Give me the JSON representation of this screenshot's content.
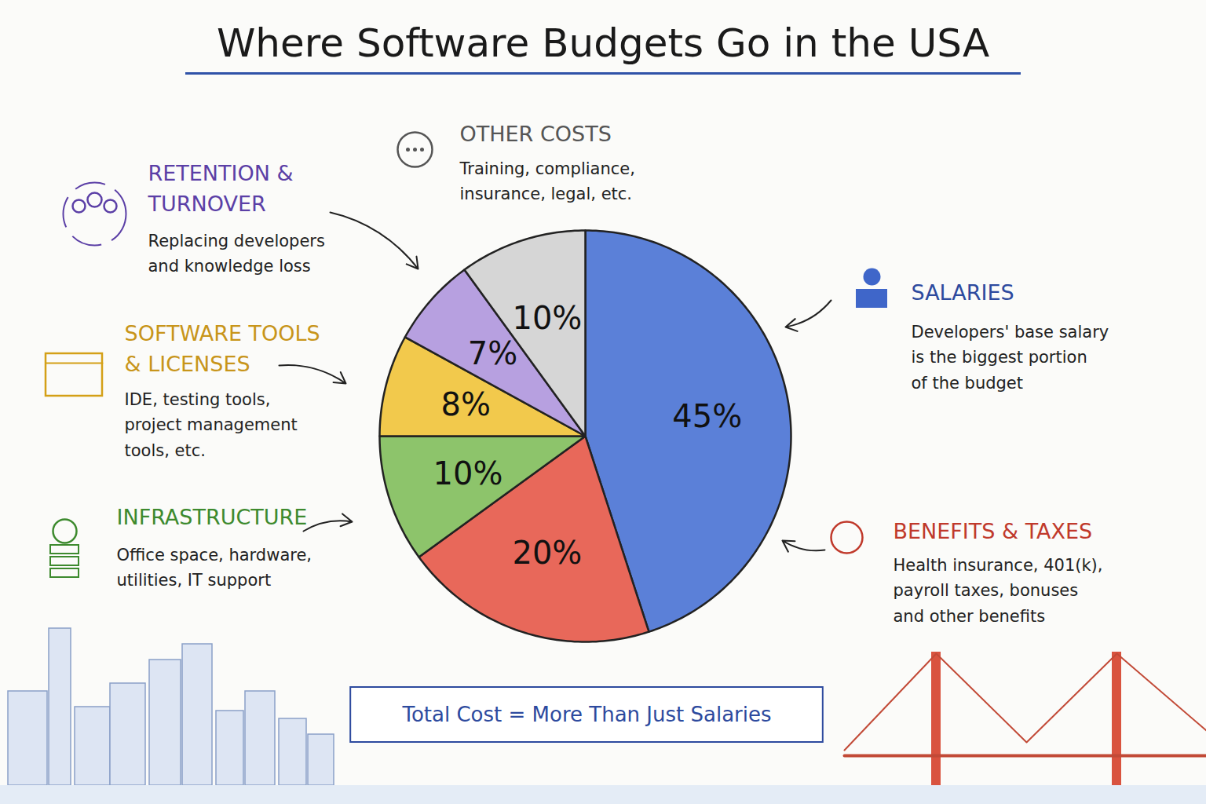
{
  "chart_data": {
    "type": "pie",
    "title": "Where Software Budgets Go in the USA",
    "categories": [
      "SALARIES",
      "BENEFITS & TAXES",
      "INFRASTRUCTURE",
      "SOFTWARE TOOLS & LICENSES",
      "RETENTION & TURNOVER",
      "OTHER COSTS"
    ],
    "values": [
      45,
      20,
      10,
      8,
      7,
      10
    ],
    "value_labels": [
      "45%",
      "20%",
      "10%",
      "8%",
      "7%",
      "10%"
    ],
    "colors": [
      "#5b80d8",
      "#e8685a",
      "#8dc46b",
      "#f2c94c",
      "#b7a0e0",
      "#d6d6d6"
    ],
    "descriptions": [
      "Developers' base salary is the biggest portion of the budget",
      "Health insurance, 401(k), payroll taxes, bonuses and other benefits",
      "Office space, hardware, utilities, IT support",
      "IDE, testing tools, project management tools, etc.",
      "Replacing developers and knowledge loss",
      "Training, compliance, insurance, legal, etc."
    ],
    "annotation": "Total Cost = More Than Just Salaries",
    "data_labels": true,
    "tick_labels": false
  }
}
